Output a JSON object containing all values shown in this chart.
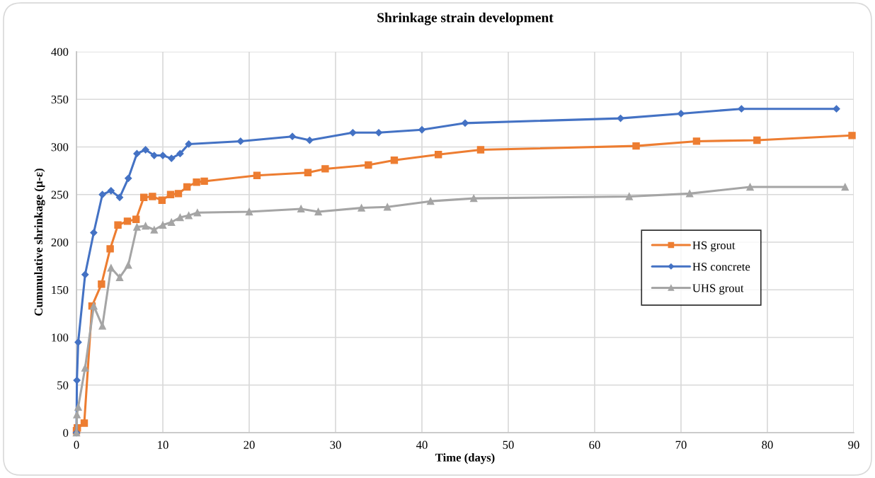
{
  "chart_data": {
    "type": "line",
    "title": "Shrinkage strain development",
    "xlabel": "Time (days)",
    "ylabel": "Cummulative shrinkage (μ-ε)",
    "xlim": [
      0,
      90
    ],
    "xticks": [
      0,
      10,
      20,
      30,
      40,
      50,
      60,
      70,
      80,
      90
    ],
    "ylim": [
      0,
      400
    ],
    "yticks": [
      0,
      50,
      100,
      150,
      200,
      250,
      300,
      350,
      400
    ],
    "grid": true,
    "legend": "center right",
    "line_style": "solid",
    "series": [
      {
        "name": "HS grout",
        "color": "#ed7d31",
        "marker": "square",
        "x": [
          0,
          0.1,
          0.9,
          1.8,
          2.9,
          3.9,
          4.8,
          5.9,
          6.9,
          7.8,
          8.8,
          9.9,
          10.9,
          11.8,
          12.8,
          13.9,
          14.8,
          20.9,
          26.8,
          28.8,
          33.8,
          36.8,
          41.9,
          46.8,
          64.8,
          71.8,
          78.8,
          89.8
        ],
        "values": [
          2,
          5,
          10,
          133,
          156,
          193,
          218,
          222,
          224,
          247,
          248,
          244,
          250,
          251,
          258,
          263,
          264,
          270,
          273,
          277,
          281,
          286,
          292,
          297,
          301,
          306,
          307,
          312
        ]
      },
      {
        "name": "HS concrete",
        "color": "#4472c4",
        "marker": "diamond",
        "x": [
          0,
          0.05,
          0.2,
          1,
          2,
          3,
          4,
          5,
          6,
          7,
          8,
          9,
          10,
          11,
          12,
          13,
          19,
          25,
          27,
          32,
          35,
          40,
          45,
          63,
          70,
          77,
          88
        ],
        "values": [
          0,
          55,
          95,
          166,
          210,
          250,
          254,
          247,
          267,
          293,
          297,
          291,
          291,
          288,
          293,
          303,
          306,
          311,
          307,
          315,
          315,
          318,
          325,
          330,
          335,
          340,
          340
        ]
      },
      {
        "name": "UHS grout",
        "color": "#a5a5a5",
        "marker": "triangle",
        "x": [
          0,
          0.05,
          0.2,
          1,
          2,
          3,
          4,
          5,
          6,
          7,
          8,
          9,
          10,
          11,
          12,
          13,
          14,
          20,
          26,
          28,
          33,
          36,
          41,
          46,
          64,
          71,
          78,
          89
        ],
        "values": [
          0,
          19,
          27,
          68,
          133,
          112,
          173,
          163,
          176,
          216,
          217,
          213,
          218,
          221,
          226,
          228,
          231,
          232,
          235,
          232,
          236,
          237,
          243,
          246,
          248,
          251,
          258,
          258
        ]
      }
    ]
  }
}
